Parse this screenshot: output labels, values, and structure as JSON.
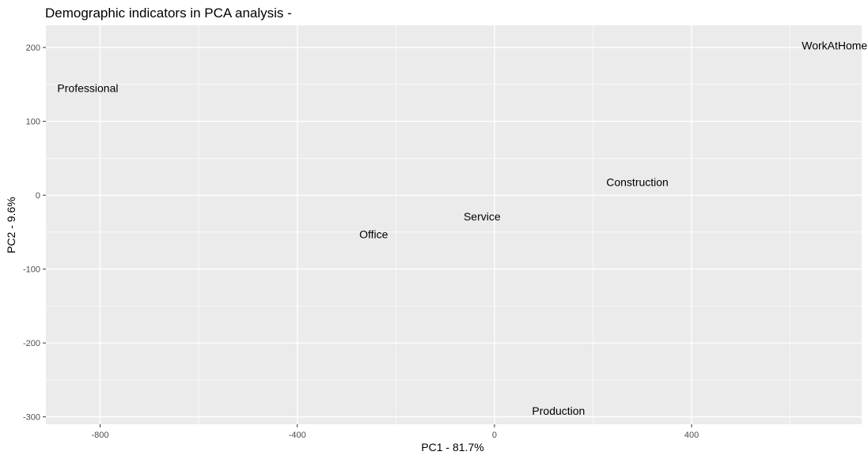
{
  "chart_data": {
    "type": "scatter",
    "title": "Demographic indicators in PCA analysis -",
    "xlabel": "PC1 - 81.7%",
    "ylabel": "PC2 - 9.6%",
    "xlim": [
      -910,
      745
    ],
    "ylim": [
      -310,
      230
    ],
    "x_ticks": [
      -800,
      -400,
      0,
      400
    ],
    "y_ticks": [
      200,
      100,
      0,
      -100,
      -200,
      -300
    ],
    "grid": true,
    "points": [
      {
        "label": "Professional",
        "x": -825,
        "y": 145
      },
      {
        "label": "WorkAtHome",
        "x": 690,
        "y": 203
      },
      {
        "label": "Construction",
        "x": 290,
        "y": 18
      },
      {
        "label": "Service",
        "x": -25,
        "y": -29
      },
      {
        "label": "Office",
        "x": -245,
        "y": -53
      },
      {
        "label": "Production",
        "x": 130,
        "y": -292
      }
    ]
  }
}
